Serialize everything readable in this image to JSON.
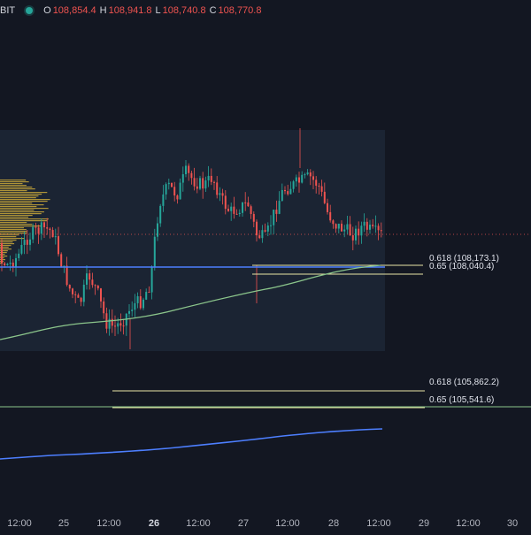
{
  "header": {
    "symbol_fragment": "BIT",
    "open_label": "O",
    "open_value": "108,854.4",
    "high_label": "H",
    "high_value": "108,941.8",
    "low_label": "L",
    "low_value": "108,740.8",
    "close_label": "C",
    "close_value": "108,770.8"
  },
  "fib_labels": {
    "upper_618": "0.618 (108,173.1)",
    "upper_65": "0.65 (108,040.4)",
    "lower_618": "0.618 (105,862.2)",
    "lower_65": "0.65 (105,541.6)"
  },
  "x_axis": {
    "ticks": [
      "12:00",
      "25",
      "12:00",
      "26",
      "12:00",
      "27",
      "12:00",
      "28",
      "12:00",
      "29",
      "12:00",
      "30"
    ]
  },
  "colors": {
    "background": "#131722",
    "up": "#26a69a",
    "down": "#ef5350",
    "fib_line": "#e8e6a5",
    "ma_green": "#8bc58b",
    "blue_line": "#4d7fff",
    "profile": "#c9a83a"
  }
}
